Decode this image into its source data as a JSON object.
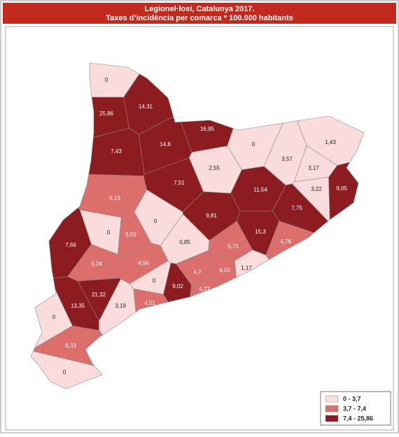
{
  "header": {
    "title": "Legionel·losi, Catalunya 2017.",
    "subtitle": "Taxes d’incidència per comarca * 100.000 habitants"
  },
  "map": {
    "values": [
      0,
      25.86,
      14.31,
      16.95,
      7.43,
      14.6,
      0,
      1.43,
      2.55,
      3.57,
      3.17,
      7.51,
      11.54,
      3.22,
      9.05,
      5.13,
      0,
      9.81,
      7.75,
      0,
      5.55,
      15.3,
      4.76,
      7.66,
      0.85,
      5.75,
      5.24,
      4.95,
      4.7,
      6.05,
      1.17,
      0,
      9.02,
      4.77,
      21.32,
      13.35,
      3.19,
      4.01,
      0,
      6.33,
      0
    ],
    "value_labels": [
      "0",
      "25,86",
      "14,31",
      "16,95",
      "7,43",
      "14,6",
      "0",
      "1,43",
      "2,55",
      "3,57",
      "3,17",
      "7,51",
      "11,54",
      "3,22",
      "9,05",
      "5,13",
      "0",
      "9,81",
      "7,75",
      "0",
      "5,55",
      "15,3",
      "4,76",
      "7,66",
      "0,85",
      "5,75",
      "5,24",
      "4,95",
      "4,7",
      "6,05",
      "1,17",
      "0",
      "9,02",
      "4,77",
      "21,32",
      "13,35",
      "3,19",
      "4,01",
      "0",
      "6,33",
      "0"
    ]
  },
  "legend": {
    "items": [
      {
        "min": 0,
        "max": 3.7,
        "label": "0 - 3,7",
        "color": "#fbdcdc"
      },
      {
        "min": 3.7,
        "max": 7.4,
        "label": "3,7 - 7,4",
        "color": "#dc6e6c"
      },
      {
        "min": 7.4,
        "max": 25.86,
        "label": "7,4 - 25,86",
        "color": "#8c1c20"
      }
    ]
  }
}
